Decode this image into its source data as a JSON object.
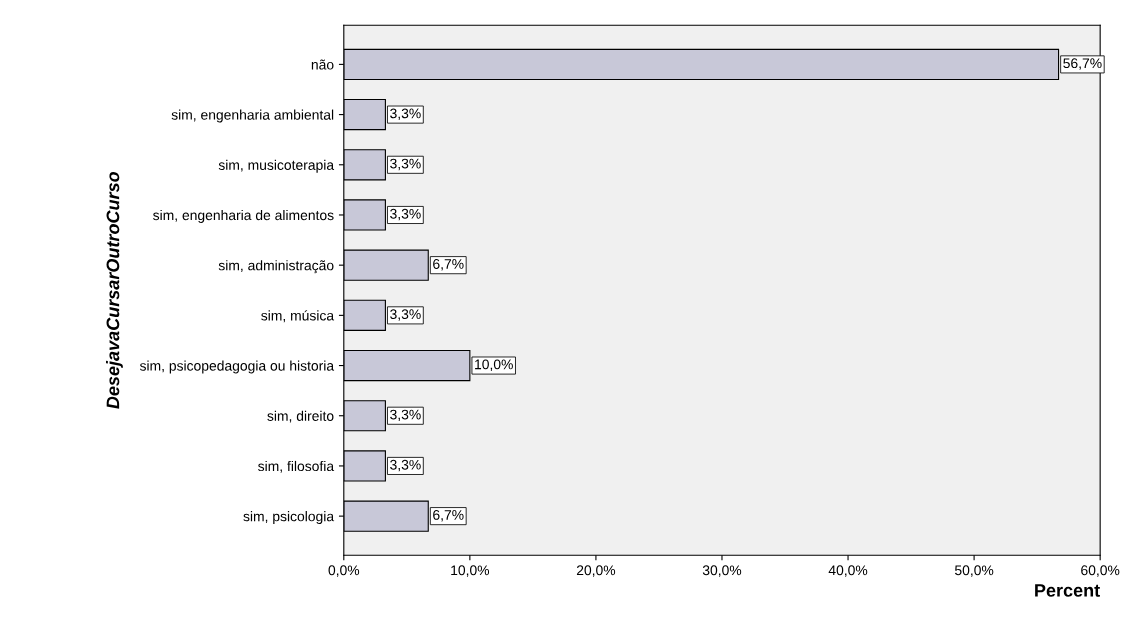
{
  "chart_data": {
    "type": "bar",
    "orientation": "horizontal",
    "xlabel": "Percent",
    "ylabel": "DesejavaCursarOutroCurso",
    "categories": [
      "não",
      "sim, engenharia ambiental",
      "sim, musicoterapia",
      "sim, engenharia de alimentos",
      "sim, administração",
      "sim, música",
      "sim, psicopedagogia ou historia",
      "sim, direito",
      "sim, filosofia",
      "sim, psicologia"
    ],
    "values": [
      56.7,
      3.3,
      3.3,
      3.3,
      6.7,
      3.3,
      10.0,
      3.3,
      3.3,
      6.7
    ],
    "value_labels": [
      "56,7%",
      "3,3%",
      "3,3%",
      "3,3%",
      "6,7%",
      "3,3%",
      "10,0%",
      "3,3%",
      "3,3%",
      "6,7%"
    ],
    "color": "#c8c8d8",
    "xlim": [
      0,
      60
    ],
    "xticks": [
      {
        "value": 0,
        "label": "0,0%"
      },
      {
        "value": 10,
        "label": "10,0%"
      },
      {
        "value": 20,
        "label": "20,0%"
      },
      {
        "value": 30,
        "label": "30,0%"
      },
      {
        "value": 40,
        "label": "40,0%"
      },
      {
        "value": 50,
        "label": "50,0%"
      },
      {
        "value": 60,
        "label": "60,0%"
      }
    ],
    "grid": false,
    "legend": false
  }
}
